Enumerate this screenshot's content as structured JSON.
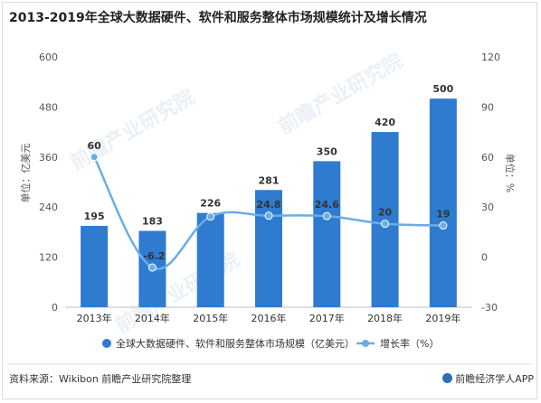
{
  "title": "2013-2019年全球大数据硬件、软件和服务整体市场规模统计及增长情况",
  "footer": {
    "source": "资料来源：Wikibon 前瞻产业研究院整理",
    "brand": "前瞻经济学人APP"
  },
  "watermark": "前瞻产业研究院",
  "colors": {
    "bar": "#2e7bcf",
    "line": "#6aaee6",
    "axis_text": "#555555",
    "grid": "#e6e6e6"
  },
  "chart_data": {
    "type": "bar",
    "categories": [
      "2013年",
      "2014年",
      "2015年",
      "2016年",
      "2017年",
      "2018年",
      "2019年"
    ],
    "series": [
      {
        "name": "全球大数据硬件、软件和服务整体市场规模（亿美元）",
        "type": "bar",
        "axis": "left",
        "values": [
          195,
          183,
          226,
          281,
          350,
          420,
          500
        ],
        "labels": [
          "195",
          "183",
          "226",
          "281",
          "350",
          "420",
          "500"
        ]
      },
      {
        "name": "增长率（%）",
        "type": "line",
        "axis": "right",
        "values": [
          60,
          -6.2,
          24.3,
          24.8,
          24.6,
          20,
          19
        ],
        "labels": [
          "60",
          "-6.2",
          "",
          "24.8",
          "24.6",
          "20",
          "19"
        ]
      }
    ],
    "ylabel_left": "单位：亿美元",
    "ylabel_right": "单位：%",
    "ylim_left": [
      0,
      600
    ],
    "ylim_right": [
      -30,
      120
    ],
    "yticks_left": [
      "600",
      "480",
      "360",
      "240",
      "120",
      "0"
    ],
    "yticks_right": [
      "120",
      "90",
      "60",
      "30",
      "0",
      "-30"
    ],
    "legend_position": "bottom",
    "grid": false
  }
}
